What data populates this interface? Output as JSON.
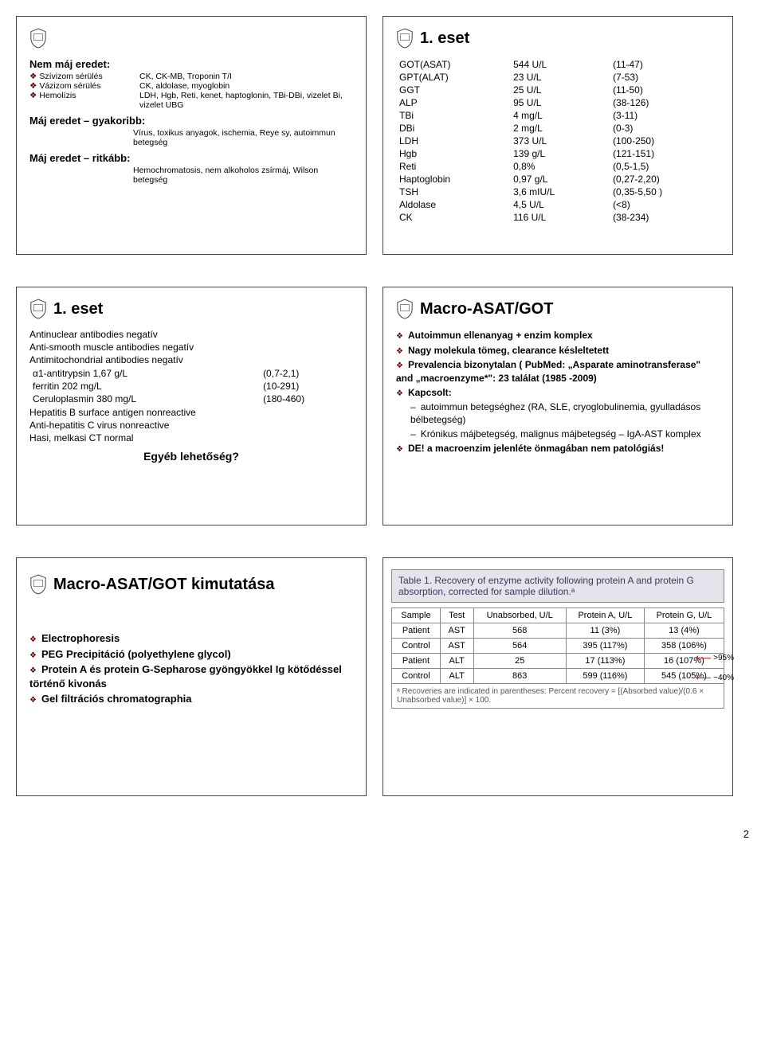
{
  "row1": {
    "left": {
      "title": "",
      "h1": "Nem máj eredet:",
      "items": [
        {
          "a": "Szívizom sérülés",
          "b": "CK, CK-MB, Troponin T/I"
        },
        {
          "a": "Vázizom sérülés",
          "b": "CK, aldolase, myoglobin"
        },
        {
          "a": "Hemolízis",
          "b": "LDH, Hgb, Reti, kenet, haptoglonin, TBi-DBi, vizelet Bi, vizelet UBG"
        }
      ],
      "h2": "Máj eredet – gyakoribb:",
      "h2b": "Vírus, toxikus anyagok, ischemia, Reye sy, autoimmun betegség",
      "h3": "Máj eredet – ritkább:",
      "h3b": "Hemochromatosis, nem alkoholos zsírmáj, Wilson betegség"
    },
    "right": {
      "title": "1. eset",
      "rows": [
        [
          "GOT(ASAT)",
          "544 U/L",
          "(11-47)"
        ],
        [
          "GPT(ALAT)",
          "23 U/L",
          "(7-53)"
        ],
        [
          "GGT",
          "25 U/L",
          "(11-50)"
        ],
        [
          "ALP",
          "95 U/L",
          "(38-126)"
        ],
        [
          "TBi",
          "4 mg/L",
          "(3-11)"
        ],
        [
          "DBi",
          "2 mg/L",
          "(0-3)"
        ],
        [
          "LDH",
          "373 U/L",
          "(100-250)"
        ],
        [
          "Hgb",
          "139 g/L",
          "(121-151)"
        ],
        [
          "Reti",
          "0,8%",
          "(0,5-1,5)"
        ],
        [
          "Haptoglobin",
          "0,97 g/L",
          "(0,27-2,20)"
        ],
        [
          "TSH",
          "3,6 mIU/L",
          "(0,35-5,50 )"
        ],
        [
          "Aldolase",
          "4,5 U/L",
          "(<8)"
        ],
        [
          "CK",
          "116 U/L",
          "(38-234)"
        ]
      ]
    }
  },
  "row2": {
    "left": {
      "title": "1. eset",
      "lines": [
        "Antinuclear antibodies negatív",
        "Anti-smooth muscle antibodies negatív",
        "Antimitochondrial antibodies negatív"
      ],
      "pairs": [
        [
          "α1-antitrypsin 1,67 g/L",
          "(0,7-2,1)"
        ],
        [
          "ferritin 202 mg/L",
          "(10-291)"
        ],
        [
          "Ceruloplasmin 380 mg/L",
          "(180-460)"
        ]
      ],
      "lines2": [
        "Hepatitis B surface antigen nonreactive",
        "Anti-hepatitis C virus  nonreactive",
        "Hasi, melkasi CT  normal"
      ],
      "q": "Egyéb lehetőség?"
    },
    "right": {
      "title": "Macro-ASAT/GOT",
      "b1": "Autoimmun ellenanyag + enzim komplex",
      "b2": "Nagy molekula tömeg, clearance késleltetett",
      "b3": "Prevalencia bizonytalan ( PubMed: „Asparate aminotransferase\" and „macroenzyme*\": 23 találat (1985 -2009)",
      "b4": "Kapcsolt:",
      "s1": "autoimmun betegséghez (RA, SLE, cryoglobulinemia, gyulladásos bélbetegség)",
      "s2": "Krónikus májbetegség, malignus májbetegség – IgA-AST komplex",
      "b5": "DE! a macroenzim jelenléte önmagában nem patológiás!"
    }
  },
  "row3": {
    "left": {
      "title": "Macro-ASAT/GOT kimutatása",
      "b1": "Electrophoresis",
      "b2": "PEG Precipitáció (polyethylene glycol)",
      "b3": "Protein A és protein G-Sepharose gyöngyökkel Ig kötődéssel történő kivonás",
      "b4": "Gel filtrációs chromatographia"
    },
    "right": {
      "t1_title": "Table 1.  Recovery of enzyme activity following protein A and protein G absorption, corrected for sample dilution.ᵃ",
      "headers": [
        "Sample",
        "Test",
        "Unabsorbed, U/L",
        "Protein A, U/L",
        "Protein G, U/L"
      ],
      "rows": [
        [
          "Patient",
          "AST",
          "568",
          "11 (3%)",
          "13 (4%)"
        ],
        [
          "Control",
          "AST",
          "564",
          "395 (117%)",
          "358 (106%)"
        ],
        [
          "Patient",
          "ALT",
          "25",
          "17 (113%)",
          "16 (107%)"
        ],
        [
          "Control",
          "ALT",
          "863",
          "599 (116%)",
          "545 (105%)"
        ]
      ],
      "foot": "ᵃ Recoveries are indicated in parentheses: Percent recovery = [(Absorbed value)/(0.6 × Unabsorbed value)] × 100.",
      "note1": ">95%",
      "note2": "~40%"
    }
  },
  "page": "2"
}
